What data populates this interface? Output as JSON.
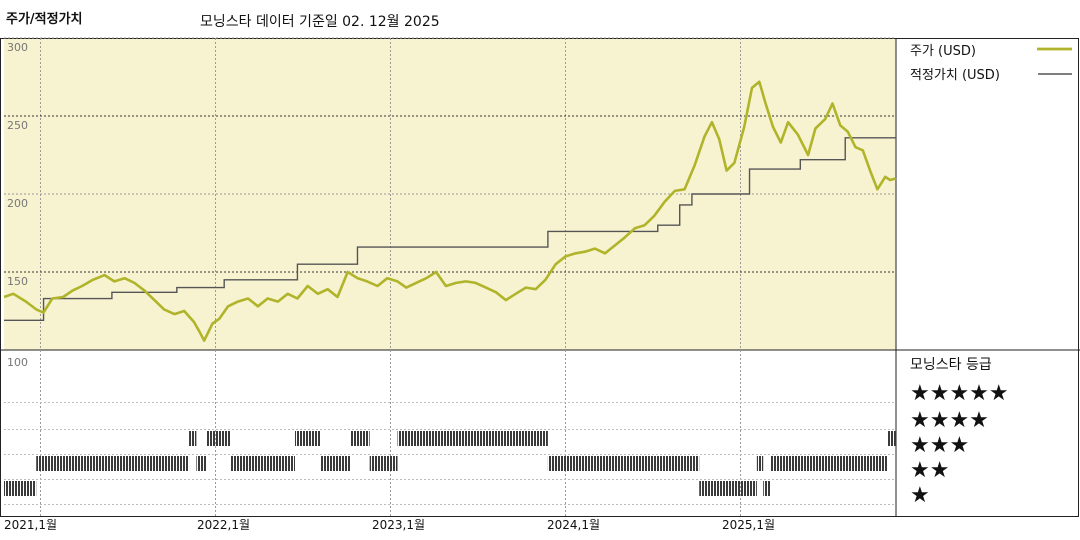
{
  "header": {
    "title": "주가/적정가치",
    "subtitle": "모닝스타 데이터 기준일 02. 12월 2025"
  },
  "legend": {
    "price_label": "주가 (USD)",
    "fair_value_label": "적정가치 (USD)"
  },
  "rating_panel": {
    "title": "모닝스타 등급",
    "rows": [
      "★★★★★",
      "★★★★",
      "★★★",
      "★★",
      "★"
    ]
  },
  "colors": {
    "panel_bg": "#f7f3d0",
    "price": "#b0b42a",
    "fair_value": "#555555",
    "rating_bar": "#3a3a3a"
  },
  "chart_data": [
    {
      "type": "line",
      "y_tick_labels": [
        "300",
        "250",
        "200",
        "150"
      ],
      "ylim": [
        100,
        300
      ],
      "grid": true,
      "x_tick_labels": [
        "2021,1월",
        "2022,1월",
        "2023,1월",
        "2024,1월",
        "2025,1월"
      ],
      "xlim": [
        "2020-12-01",
        "2025-12-02"
      ],
      "series": [
        {
          "name": "주가 (USD)",
          "points": [
            [
              "2020-12-01",
              134
            ],
            [
              "2020-12-20",
              136
            ],
            [
              "2021-01-15",
              131
            ],
            [
              "2021-02-05",
              126
            ],
            [
              "2021-02-20",
              124
            ],
            [
              "2021-03-10",
              133
            ],
            [
              "2021-04-01",
              134
            ],
            [
              "2021-04-20",
              138
            ],
            [
              "2021-05-10",
              141
            ],
            [
              "2021-06-01",
              145
            ],
            [
              "2021-06-25",
              148
            ],
            [
              "2021-07-15",
              144
            ],
            [
              "2021-08-05",
              146
            ],
            [
              "2021-08-25",
              143
            ],
            [
              "2021-09-15",
              138
            ],
            [
              "2021-10-05",
              132
            ],
            [
              "2021-10-25",
              126
            ],
            [
              "2021-11-15",
              123
            ],
            [
              "2021-12-05",
              125
            ],
            [
              "2021-12-25",
              118
            ],
            [
              "2022-01-05",
              112
            ],
            [
              "2022-01-15",
              106
            ],
            [
              "2022-02-01",
              117
            ],
            [
              "2022-02-15",
              120
            ],
            [
              "2022-03-05",
              128
            ],
            [
              "2022-03-25",
              131
            ],
            [
              "2022-04-15",
              133
            ],
            [
              "2022-05-05",
              128
            ],
            [
              "2022-05-25",
              133
            ],
            [
              "2022-06-15",
              131
            ],
            [
              "2022-07-05",
              136
            ],
            [
              "2022-07-25",
              133
            ],
            [
              "2022-08-15",
              141
            ],
            [
              "2022-09-05",
              136
            ],
            [
              "2022-09-25",
              139
            ],
            [
              "2022-10-15",
              134
            ],
            [
              "2022-11-05",
              150
            ],
            [
              "2022-11-25",
              146
            ],
            [
              "2022-12-15",
              144
            ],
            [
              "2023-01-05",
              141
            ],
            [
              "2023-01-25",
              146
            ],
            [
              "2023-02-15",
              144
            ],
            [
              "2023-03-05",
              140
            ],
            [
              "2023-03-25",
              143
            ],
            [
              "2023-04-15",
              146
            ],
            [
              "2023-05-05",
              150
            ],
            [
              "2023-05-25",
              141
            ],
            [
              "2023-06-15",
              143
            ],
            [
              "2023-07-05",
              144
            ],
            [
              "2023-07-25",
              143
            ],
            [
              "2023-08-15",
              140
            ],
            [
              "2023-09-05",
              137
            ],
            [
              "2023-09-25",
              132
            ],
            [
              "2023-10-15",
              136
            ],
            [
              "2023-11-05",
              140
            ],
            [
              "2023-11-25",
              139
            ],
            [
              "2023-12-15",
              145
            ],
            [
              "2024-01-05",
              155
            ],
            [
              "2024-01-25",
              160
            ],
            [
              "2024-02-15",
              162
            ],
            [
              "2024-03-05",
              163
            ],
            [
              "2024-03-25",
              165
            ],
            [
              "2024-04-15",
              162
            ],
            [
              "2024-05-05",
              167
            ],
            [
              "2024-05-25",
              172
            ],
            [
              "2024-06-15",
              178
            ],
            [
              "2024-07-05",
              180
            ],
            [
              "2024-07-25",
              186
            ],
            [
              "2024-08-15",
              195
            ],
            [
              "2024-09-05",
              202
            ],
            [
              "2024-09-25",
              203
            ],
            [
              "2024-10-15",
              218
            ],
            [
              "2024-11-05",
              237
            ],
            [
              "2024-11-20",
              246
            ],
            [
              "2024-12-05",
              235
            ],
            [
              "2024-12-20",
              215
            ],
            [
              "2025-01-05",
              220
            ],
            [
              "2025-01-25",
              243
            ],
            [
              "2025-02-10",
              268
            ],
            [
              "2025-02-25",
              272
            ],
            [
              "2025-03-10",
              258
            ],
            [
              "2025-03-25",
              243
            ],
            [
              "2025-04-10",
              233
            ],
            [
              "2025-04-25",
              246
            ],
            [
              "2025-05-15",
              238
            ],
            [
              "2025-06-05",
              225
            ],
            [
              "2025-06-20",
              242
            ],
            [
              "2025-07-10",
              248
            ],
            [
              "2025-07-25",
              258
            ],
            [
              "2025-08-10",
              244
            ],
            [
              "2025-08-25",
              240
            ],
            [
              "2025-09-10",
              230
            ],
            [
              "2025-09-25",
              228
            ],
            [
              "2025-10-10",
              215
            ],
            [
              "2025-10-25",
              203
            ],
            [
              "2025-11-10",
              211
            ],
            [
              "2025-11-20",
              209
            ],
            [
              "2025-12-02",
              210
            ]
          ]
        },
        {
          "name": "적정가치 (USD)",
          "step": true,
          "points": [
            [
              "2020-12-01",
              119
            ],
            [
              "2021-02-20",
              133
            ],
            [
              "2021-07-10",
              137
            ],
            [
              "2021-11-20",
              140
            ],
            [
              "2022-02-25",
              145
            ],
            [
              "2022-07-25",
              155
            ],
            [
              "2022-11-25",
              166
            ],
            [
              "2023-12-20",
              176
            ],
            [
              "2024-08-01",
              180
            ],
            [
              "2024-09-15",
              193
            ],
            [
              "2024-10-10",
              200
            ],
            [
              "2025-02-05",
              216
            ],
            [
              "2025-05-20",
              222
            ],
            [
              "2025-08-20",
              236
            ],
            [
              "2025-12-02",
              236
            ]
          ]
        }
      ]
    },
    {
      "type": "heatmap",
      "title": "모닝스타 등급",
      "rows": [
        5,
        4,
        3,
        2,
        1
      ],
      "y_tick_labels": [
        "100"
      ],
      "periods": [
        {
          "start": "2020-12-01",
          "end": "2021-02-05",
          "stars": 2
        },
        {
          "start": "2021-02-05",
          "end": "2021-12-15",
          "stars": 3
        },
        {
          "start": "2021-12-15",
          "end": "2021-12-30",
          "stars": 4
        },
        {
          "start": "2021-12-30",
          "end": "2022-01-20",
          "stars": 3
        },
        {
          "start": "2022-01-20",
          "end": "2022-03-10",
          "stars": 4
        },
        {
          "start": "2022-03-10",
          "end": "2022-07-20",
          "stars": 3
        },
        {
          "start": "2022-07-20",
          "end": "2022-09-10",
          "stars": 4
        },
        {
          "start": "2022-09-10",
          "end": "2022-11-10",
          "stars": 3
        },
        {
          "start": "2022-11-10",
          "end": "2022-12-20",
          "stars": 4
        },
        {
          "start": "2022-12-20",
          "end": "2023-02-15",
          "stars": 3
        },
        {
          "start": "2023-02-15",
          "end": "2023-12-20",
          "stars": 4
        },
        {
          "start": "2023-12-20",
          "end": "2024-10-25",
          "stars": 3
        },
        {
          "start": "2024-10-25",
          "end": "2025-02-20",
          "stars": 2
        },
        {
          "start": "2025-02-20",
          "end": "2025-03-05",
          "stars": 3
        },
        {
          "start": "2025-03-05",
          "end": "2025-03-20",
          "stars": 2
        },
        {
          "start": "2025-03-20",
          "end": "2025-11-15",
          "stars": 3
        },
        {
          "start": "2025-11-15",
          "end": "2025-12-02",
          "stars": 4
        }
      ]
    }
  ]
}
